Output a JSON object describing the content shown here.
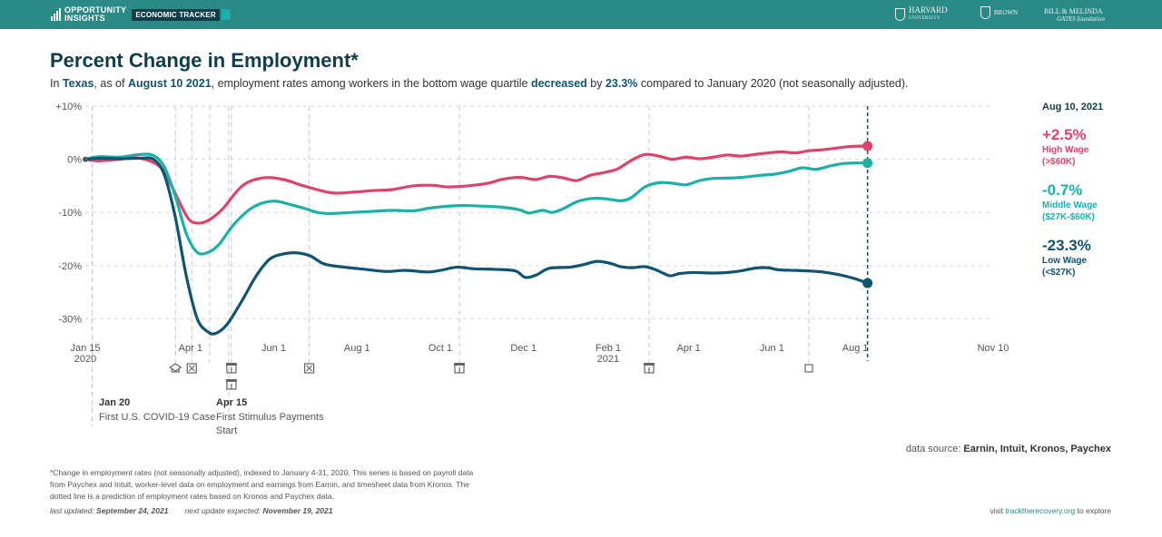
{
  "header": {
    "brand_line1": "OPPORTUNITY",
    "brand_line2": "INSIGHTS",
    "brand_tag": "ECONOMIC TRACKER",
    "partners": [
      {
        "name": "HARVARD",
        "sub": "UNIVERSITY"
      },
      {
        "name": "BROWN",
        "sub": ""
      },
      {
        "name": "BILL & MELINDA",
        "sub": "GATES foundation"
      }
    ]
  },
  "title": "Percent Change in Employment*",
  "subtitle": {
    "p1": "In ",
    "state": "Texas",
    "p2": ", as of ",
    "date": "August 10 2021",
    "p3": ", employment rates among workers in the bottom wage quartile ",
    "direction": "decreased",
    "p4": " by ",
    "pct": "23.3%",
    "p5": " compared to January 2020 (not seasonally adjusted)."
  },
  "chart_data": {
    "type": "line",
    "title": "Percent Change in Employment*",
    "ylim": [
      -33,
      10
    ],
    "xlim_days": [
      0,
      665
    ],
    "y_ticks": [
      {
        "value": 10,
        "label": "+10%"
      },
      {
        "value": 0,
        "label": "0%"
      },
      {
        "value": -10,
        "label": "-10%"
      },
      {
        "value": -20,
        "label": "-20%"
      },
      {
        "value": -30,
        "label": "-30%"
      }
    ],
    "x_ticks": [
      {
        "day": 0,
        "label": "Jan 15",
        "label2": "2020"
      },
      {
        "day": 77,
        "label": "Apr 1",
        "label2": ""
      },
      {
        "day": 138,
        "label": "Jun 1",
        "label2": ""
      },
      {
        "day": 199,
        "label": "Aug 1",
        "label2": ""
      },
      {
        "day": 260,
        "label": "Oct 1",
        "label2": ""
      },
      {
        "day": 321,
        "label": "Dec 1",
        "label2": ""
      },
      {
        "day": 383,
        "label": "Feb 1",
        "label2": "2021"
      },
      {
        "day": 442,
        "label": "Apr 1",
        "label2": ""
      },
      {
        "day": 503,
        "label": "Jun 1",
        "label2": ""
      },
      {
        "day": 564,
        "label": "Aug 1",
        "label2": ""
      },
      {
        "day": 665,
        "label": "Nov 10",
        "label2": ""
      }
    ],
    "grid": "horizontal dashed",
    "event_lines_days": [
      5,
      66,
      78,
      91,
      105,
      107,
      164,
      274,
      413,
      530
    ],
    "event_icons": [
      {
        "day": 66,
        "icon": "school-icon"
      },
      {
        "day": 78,
        "icon": "closed-box-icon"
      },
      {
        "day": 107,
        "icon": "store-icon"
      },
      {
        "day": 107,
        "icon": "store-icon",
        "row": 2
      },
      {
        "day": 164,
        "icon": "closed-box-icon"
      },
      {
        "day": 274,
        "icon": "store-icon"
      },
      {
        "day": 413,
        "icon": "store-icon"
      },
      {
        "day": 530,
        "icon": "square-icon"
      }
    ],
    "cutoff_day": 573,
    "series": [
      {
        "name": "High Wage",
        "color": "#e0436a",
        "points": [
          [
            0,
            0
          ],
          [
            10,
            -0.3
          ],
          [
            25,
            0
          ],
          [
            40,
            0.2
          ],
          [
            55,
            -1.5
          ],
          [
            65,
            -6
          ],
          [
            75,
            -11
          ],
          [
            82,
            -12
          ],
          [
            90,
            -11.5
          ],
          [
            100,
            -9.5
          ],
          [
            115,
            -5
          ],
          [
            130,
            -3.5
          ],
          [
            145,
            -3.8
          ],
          [
            160,
            -5
          ],
          [
            180,
            -6.3
          ],
          [
            195,
            -6.2
          ],
          [
            210,
            -5.9
          ],
          [
            225,
            -5.7
          ],
          [
            240,
            -5
          ],
          [
            255,
            -4.9
          ],
          [
            265,
            -5.2
          ],
          [
            280,
            -5
          ],
          [
            295,
            -4.5
          ],
          [
            305,
            -3.8
          ],
          [
            318,
            -3.4
          ],
          [
            330,
            -3.8
          ],
          [
            340,
            -3.2
          ],
          [
            350,
            -3.5
          ],
          [
            360,
            -4
          ],
          [
            370,
            -3
          ],
          [
            380,
            -2.5
          ],
          [
            390,
            -1.8
          ],
          [
            400,
            -0.2
          ],
          [
            410,
            0.9
          ],
          [
            420,
            0.6
          ],
          [
            430,
            0
          ],
          [
            440,
            0.4
          ],
          [
            450,
            0.1
          ],
          [
            460,
            0.4
          ],
          [
            470,
            0.8
          ],
          [
            480,
            0.6
          ],
          [
            490,
            0.9
          ],
          [
            500,
            1.2
          ],
          [
            510,
            1.4
          ],
          [
            520,
            1.2
          ],
          [
            530,
            1.6
          ],
          [
            540,
            1.8
          ],
          [
            550,
            2.1
          ],
          [
            560,
            2.4
          ],
          [
            573,
            2.5
          ]
        ],
        "end_value": "+2.5%",
        "label": "High Wage",
        "range": "(>$60K)"
      },
      {
        "name": "Middle Wage",
        "color": "#1bb0a8",
        "points": [
          [
            0,
            0
          ],
          [
            10,
            0.5
          ],
          [
            25,
            0.4
          ],
          [
            40,
            0.9
          ],
          [
            50,
            0.7
          ],
          [
            58,
            -1.5
          ],
          [
            66,
            -7
          ],
          [
            74,
            -14
          ],
          [
            82,
            -17.5
          ],
          [
            90,
            -17.5
          ],
          [
            98,
            -16
          ],
          [
            108,
            -12.5
          ],
          [
            120,
            -9.5
          ],
          [
            130,
            -8.2
          ],
          [
            140,
            -7.9
          ],
          [
            150,
            -8.5
          ],
          [
            160,
            -9.2
          ],
          [
            170,
            -10
          ],
          [
            180,
            -10.2
          ],
          [
            195,
            -10
          ],
          [
            210,
            -9.8
          ],
          [
            225,
            -9.6
          ],
          [
            240,
            -9.7
          ],
          [
            252,
            -9.2
          ],
          [
            262,
            -8.9
          ],
          [
            275,
            -8.7
          ],
          [
            290,
            -8.8
          ],
          [
            305,
            -9
          ],
          [
            318,
            -9.5
          ],
          [
            325,
            -10.1
          ],
          [
            335,
            -9.6
          ],
          [
            342,
            -10
          ],
          [
            350,
            -9.3
          ],
          [
            360,
            -8
          ],
          [
            370,
            -7.4
          ],
          [
            380,
            -7.4
          ],
          [
            392,
            -7.8
          ],
          [
            400,
            -7.2
          ],
          [
            410,
            -5.2
          ],
          [
            420,
            -4.4
          ],
          [
            430,
            -4.5
          ],
          [
            440,
            -4.8
          ],
          [
            450,
            -4
          ],
          [
            460,
            -3.6
          ],
          [
            475,
            -3.5
          ],
          [
            485,
            -3.3
          ],
          [
            495,
            -3
          ],
          [
            505,
            -2.8
          ],
          [
            515,
            -2.3
          ],
          [
            525,
            -1.6
          ],
          [
            535,
            -1.9
          ],
          [
            545,
            -1.3
          ],
          [
            555,
            -0.8
          ],
          [
            565,
            -0.7
          ],
          [
            573,
            -0.7
          ]
        ],
        "end_value": "-0.7%",
        "label": "Middle Wage",
        "range": "($27K-$60K)"
      },
      {
        "name": "Low Wage",
        "color": "#0f5470",
        "points": [
          [
            0,
            0
          ],
          [
            10,
            0.2
          ],
          [
            25,
            0.1
          ],
          [
            40,
            0.2
          ],
          [
            50,
            0
          ],
          [
            58,
            -3
          ],
          [
            66,
            -11
          ],
          [
            74,
            -22
          ],
          [
            82,
            -30
          ],
          [
            90,
            -32.5
          ],
          [
            96,
            -32.7
          ],
          [
            104,
            -31
          ],
          [
            115,
            -26.5
          ],
          [
            125,
            -22
          ],
          [
            135,
            -18.8
          ],
          [
            145,
            -17.8
          ],
          [
            155,
            -17.6
          ],
          [
            165,
            -18.2
          ],
          [
            175,
            -19.7
          ],
          [
            190,
            -20.3
          ],
          [
            205,
            -20.7
          ],
          [
            220,
            -21.1
          ],
          [
            235,
            -20.9
          ],
          [
            250,
            -21.2
          ],
          [
            260,
            -20.9
          ],
          [
            272,
            -20.3
          ],
          [
            285,
            -20.6
          ],
          [
            300,
            -20.7
          ],
          [
            315,
            -21
          ],
          [
            322,
            -22.2
          ],
          [
            330,
            -21.8
          ],
          [
            340,
            -20.5
          ],
          [
            355,
            -20.3
          ],
          [
            365,
            -19.8
          ],
          [
            375,
            -19.2
          ],
          [
            385,
            -19.6
          ],
          [
            392,
            -20.2
          ],
          [
            400,
            -20.4
          ],
          [
            410,
            -20.2
          ],
          [
            418,
            -20.8
          ],
          [
            428,
            -21.9
          ],
          [
            435,
            -21.5
          ],
          [
            445,
            -21.3
          ],
          [
            460,
            -21.4
          ],
          [
            470,
            -21.3
          ],
          [
            480,
            -21
          ],
          [
            490,
            -20.5
          ],
          [
            500,
            -20.4
          ],
          [
            508,
            -20.8
          ],
          [
            520,
            -20.9
          ],
          [
            530,
            -21
          ],
          [
            540,
            -21.2
          ],
          [
            552,
            -21.7
          ],
          [
            563,
            -22.4
          ],
          [
            573,
            -23.3
          ]
        ],
        "end_value": "-23.3%",
        "label": "Low Wage",
        "range": "(<$27K)"
      }
    ]
  },
  "events": [
    {
      "date": "Jan 20",
      "label": "First U.S. COVID-19 Case"
    },
    {
      "date": "Apr 15",
      "label": "First Stimulus Payments Start"
    }
  ],
  "legend": {
    "date": "Aug 10, 2021"
  },
  "footer": {
    "source_prefix": "data source: ",
    "source": "Earnin, Intuit, Kronos, Paychex",
    "footnote": "*Change in employment rates (not seasonally adjusted), indexed to January 4-31, 2020. This series is based on payroll data from Paychex and Intuit, worker-level data on employment and earnings from Earnin, and timesheet data from Kronos. The dotted line is a prediction of employment rates based on Kronos and Paychex data.",
    "updated_label": "last updated: ",
    "updated": "September 24, 2021",
    "next_label": "next update expected: ",
    "next": "November 19, 2021",
    "visit_prefix": "visit ",
    "visit_link": "tracktherecovery.org",
    "visit_suffix": " to explore"
  }
}
